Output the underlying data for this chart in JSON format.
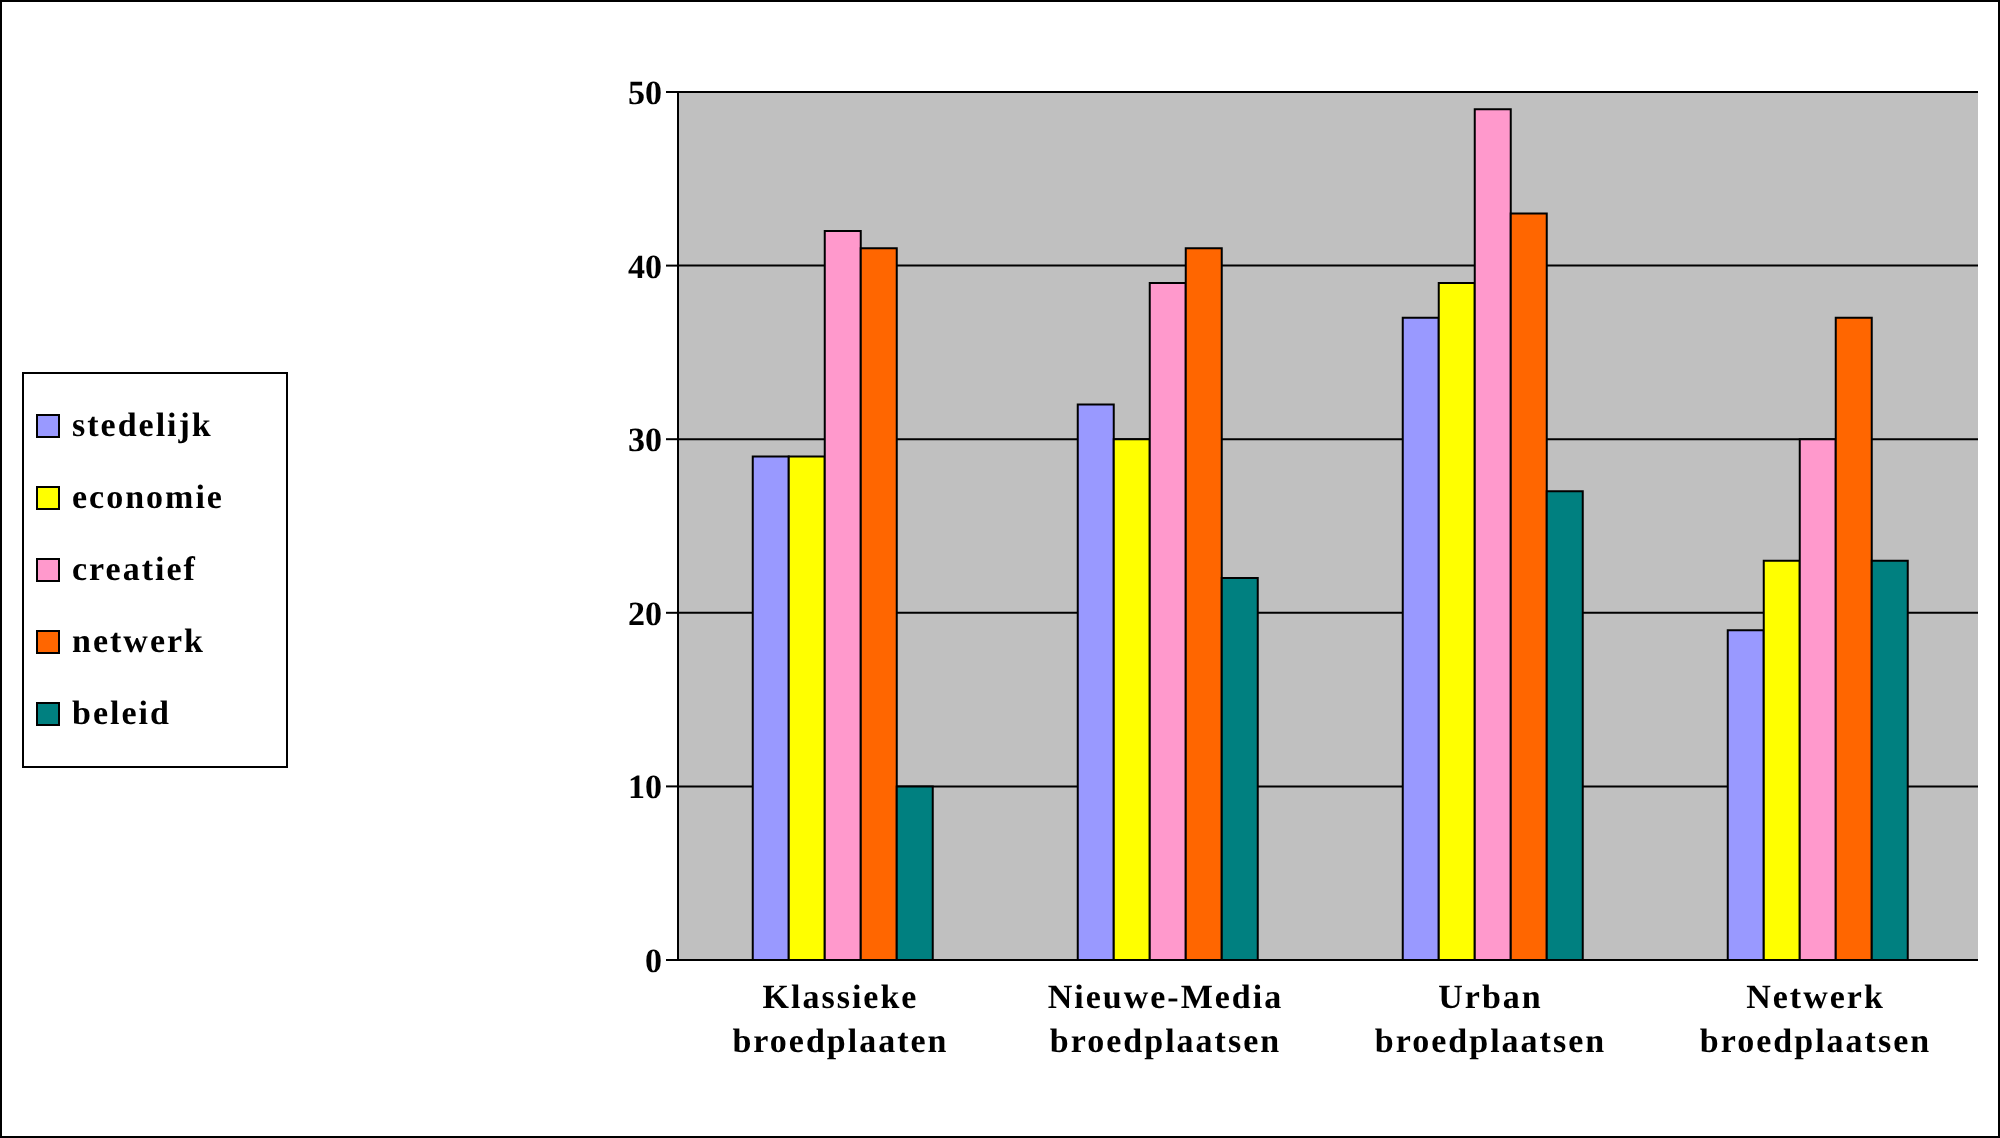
{
  "chart_data": {
    "type": "bar",
    "categories": [
      "Klassieke\nbroedplaaten",
      "Nieuwe-Media\nbroedplaatsen",
      "Urban\nbroedplaatsen",
      "Netwerk\nbroedplaatsen"
    ],
    "series": [
      {
        "name": "stedelijk",
        "color": "#9999ff",
        "values": [
          29,
          32,
          37,
          19
        ]
      },
      {
        "name": "economie",
        "color": "#ffff00",
        "values": [
          29,
          30,
          39,
          23
        ]
      },
      {
        "name": "creatief",
        "color": "#ff99cc",
        "values": [
          42,
          39,
          49,
          30
        ]
      },
      {
        "name": "netwerk",
        "color": "#ff6600",
        "values": [
          41,
          41,
          43,
          37
        ]
      },
      {
        "name": "beleid",
        "color": "#008080",
        "values": [
          10,
          22,
          27,
          23
        ]
      }
    ],
    "ylim": [
      0,
      50
    ],
    "yticks": [
      0,
      10,
      20,
      30,
      40,
      50
    ],
    "grid": "y",
    "legend": "left"
  }
}
